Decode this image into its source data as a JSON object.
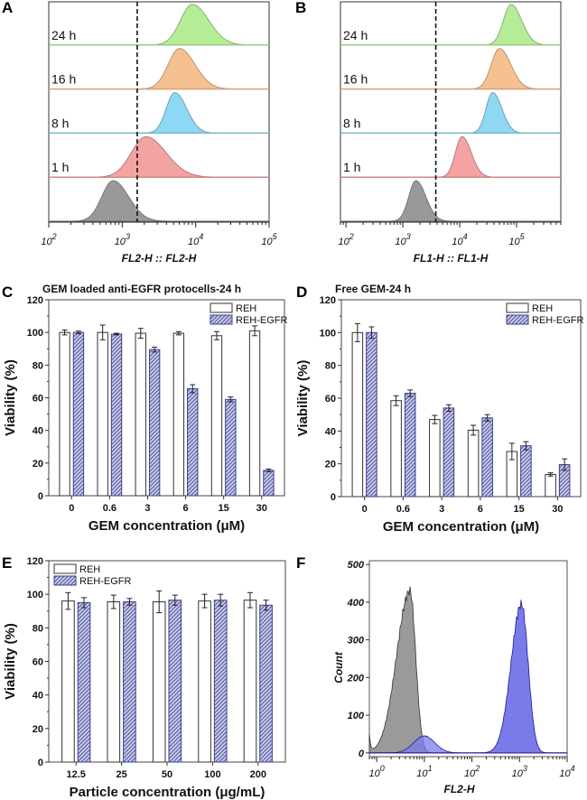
{
  "figure": {
    "panel_labels": [
      "A",
      "B",
      "C",
      "D",
      "E",
      "F"
    ]
  },
  "chart_data": [
    {
      "id": "A",
      "type": "area",
      "kind": "flow-cytometry-histogram-stack",
      "xlabel": "FL2-H :: FL2-H",
      "xscale": "log",
      "xlim": [
        100,
        100000
      ],
      "x_ticks": [
        {
          "base": "10",
          "exp": "2"
        },
        {
          "base": "10",
          "exp": "3"
        },
        {
          "base": "10",
          "exp": "4"
        },
        {
          "base": "10",
          "exp": "5"
        }
      ],
      "gate_line": 1600,
      "series": [
        {
          "name": "control",
          "label": "",
          "color": "#999999",
          "peak": 750,
          "width": 0.17
        },
        {
          "name": "1 h",
          "label": "1 h",
          "color": "#f4a3a3",
          "peak": 2100,
          "width": 0.22
        },
        {
          "name": "8 h",
          "label": "8 h",
          "color": "#8fd8f4",
          "peak": 5200,
          "width": 0.13
        },
        {
          "name": "16 h",
          "label": "16 h",
          "color": "#f6c191",
          "peak": 6000,
          "width": 0.17
        },
        {
          "name": "24 h",
          "label": "24 h",
          "color": "#b5ec96",
          "peak": 9000,
          "width": 0.18
        }
      ]
    },
    {
      "id": "B",
      "type": "area",
      "kind": "flow-cytometry-histogram-stack",
      "xlabel": "FL1-H :: FL1-H",
      "xscale": "log",
      "xlim": [
        80,
        600000
      ],
      "x_ticks": [
        {
          "base": "10",
          "exp": "2"
        },
        {
          "base": "10",
          "exp": "3"
        },
        {
          "base": "10",
          "exp": "4"
        },
        {
          "base": "10",
          "exp": "5"
        }
      ],
      "gate_line": 3800,
      "series": [
        {
          "name": "control",
          "label": "",
          "color": "#999999",
          "peak": 1700,
          "width": 0.14
        },
        {
          "name": "1 h",
          "label": "1 h",
          "color": "#f4a3a3",
          "peak": 11000,
          "width": 0.13
        },
        {
          "name": "8 h",
          "label": "8 h",
          "color": "#8fd8f4",
          "peak": 38000,
          "width": 0.13
        },
        {
          "name": "16 h",
          "label": "16 h",
          "color": "#f6c191",
          "peak": 50000,
          "width": 0.16
        },
        {
          "name": "24 h",
          "label": "24 h",
          "color": "#b5ec96",
          "peak": 80000,
          "width": 0.15
        }
      ]
    },
    {
      "id": "C",
      "type": "bar",
      "title": "GEM loaded anti-EGFR protocells-24 h",
      "xlabel": "GEM concentration (μM)",
      "ylabel": "Viability (%)",
      "ylim": [
        0,
        120
      ],
      "y_ticks": [
        0,
        20,
        40,
        60,
        80,
        100,
        120
      ],
      "categories": [
        "0",
        "0.6",
        "3",
        "6",
        "15",
        "30"
      ],
      "legend_position": "top-right",
      "series": [
        {
          "name": "REH",
          "values": [
            100,
            100,
            99.5,
            99.5,
            98,
            101
          ],
          "errors": [
            1.5,
            4.5,
            3,
            1,
            2.5,
            3
          ]
        },
        {
          "name": "REH-EGFR",
          "values": [
            100,
            99,
            89.5,
            65.5,
            59,
            15.5
          ],
          "errors": [
            0.8,
            0.5,
            1.5,
            2.5,
            1.5,
            0.8
          ]
        }
      ]
    },
    {
      "id": "D",
      "type": "bar",
      "title": "Free GEM-24 h",
      "xlabel": "GEM concentration (μM)",
      "ylabel": "Viability (%)",
      "ylim": [
        0,
        120
      ],
      "y_ticks": [
        0,
        20,
        40,
        60,
        80,
        100,
        120
      ],
      "categories": [
        "0",
        "0.6",
        "3",
        "6",
        "15",
        "30"
      ],
      "legend_position": "top-right",
      "series": [
        {
          "name": "REH",
          "values": [
            100,
            58.5,
            47,
            40.5,
            27.5,
            13.5
          ],
          "errors": [
            5.5,
            3,
            2.5,
            3,
            5,
            1
          ]
        },
        {
          "name": "REH-EGFR",
          "values": [
            100,
            63,
            54,
            48,
            31,
            19.5
          ],
          "errors": [
            3.5,
            2,
            2,
            2,
            2.5,
            3.5
          ]
        }
      ]
    },
    {
      "id": "E",
      "type": "bar",
      "title": "",
      "xlabel": "Particle concentration (μg/mL)",
      "ylabel": "Viability (%)",
      "ylim": [
        0,
        120
      ],
      "y_ticks": [
        0,
        20,
        40,
        60,
        80,
        100,
        120
      ],
      "categories": [
        "12.5",
        "25",
        "50",
        "100",
        "200"
      ],
      "legend_position": "top-left",
      "series": [
        {
          "name": "REH",
          "values": [
            96,
            95.5,
            95.5,
            96,
            96.5
          ],
          "errors": [
            5,
            4,
            6.5,
            4,
            4.5
          ]
        },
        {
          "name": "REH-EGFR",
          "values": [
            95,
            95.5,
            96.5,
            96.5,
            93.5
          ],
          "errors": [
            3,
            2,
            3,
            3.5,
            3
          ]
        }
      ]
    },
    {
      "id": "F",
      "type": "area",
      "kind": "flow-cytometry-histogram-overlay",
      "xlabel": "FL2-H",
      "ylabel": "Count",
      "xscale": "log",
      "xlim": [
        0.7,
        10000
      ],
      "ylim": [
        -10,
        510
      ],
      "y_ticks": [
        0,
        100,
        200,
        300,
        400,
        500
      ],
      "x_ticks": [
        {
          "base": "10",
          "exp": "0"
        },
        {
          "base": "10",
          "exp": "1"
        },
        {
          "base": "10",
          "exp": "2"
        },
        {
          "base": "10",
          "exp": "3"
        },
        {
          "base": "10",
          "exp": "4"
        }
      ],
      "series": [
        {
          "name": "control",
          "color": "#999999",
          "peak_x": 5,
          "peak_count": 430
        },
        {
          "name": "low-population",
          "color": "#7b7be8",
          "peak_x": 10,
          "peak_count": 45
        },
        {
          "name": "labeled",
          "color": "#7b7be8",
          "peak_x": 1100,
          "peak_count": 395
        }
      ]
    }
  ]
}
